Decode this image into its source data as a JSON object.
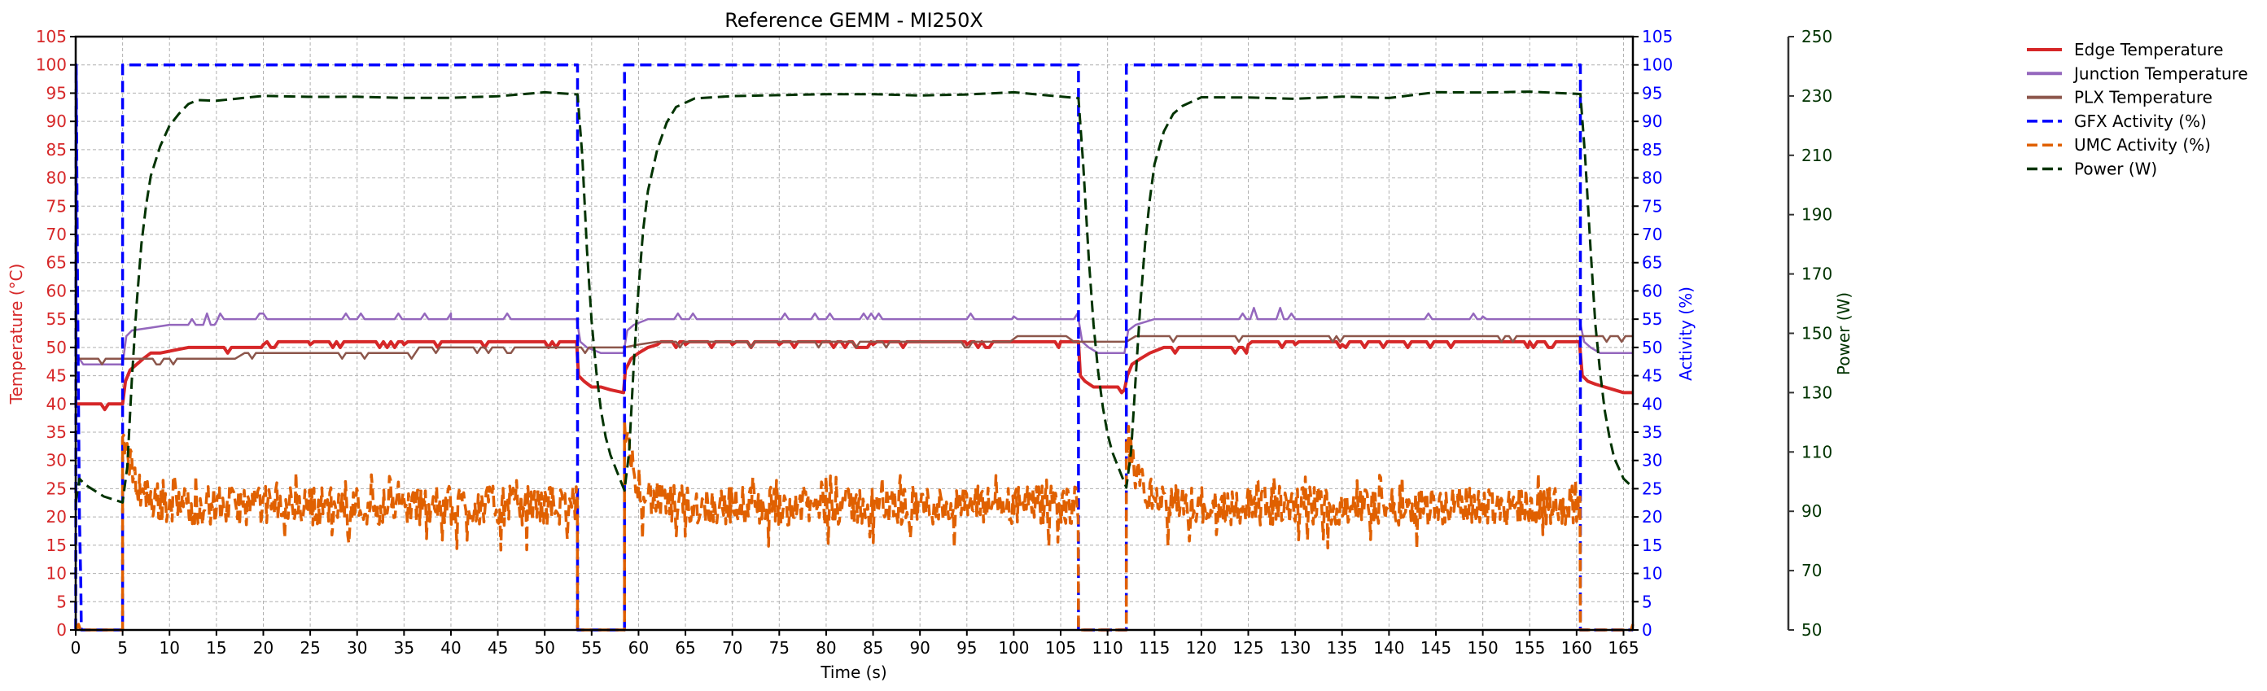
{
  "chart_data": {
    "type": "line",
    "title": "Reference GEMM - MI250X",
    "xlabel": "Time (s)",
    "ylabel_left": "Temperature (°C)",
    "ylabel_right": "Activity (%)",
    "ylabel_power": "Power (W)",
    "xlim": [
      0,
      166
    ],
    "ylim_left": [
      0,
      105
    ],
    "ylim_right": [
      0,
      105
    ],
    "ylim_power": [
      50,
      250
    ],
    "grid": true,
    "legend_position": "upper right (outside)",
    "x_ticks": [
      0,
      5,
      10,
      15,
      20,
      25,
      30,
      35,
      40,
      45,
      50,
      55,
      60,
      65,
      70,
      75,
      80,
      85,
      90,
      95,
      100,
      105,
      110,
      115,
      120,
      125,
      130,
      135,
      140,
      145,
      150,
      155,
      160,
      165
    ],
    "y_ticks_left": [
      0,
      5,
      10,
      15,
      20,
      25,
      30,
      35,
      40,
      45,
      50,
      55,
      60,
      65,
      70,
      75,
      80,
      85,
      90,
      95,
      100,
      105
    ],
    "y_ticks_right": [
      0,
      5,
      10,
      15,
      20,
      25,
      30,
      35,
      40,
      45,
      50,
      55,
      60,
      65,
      70,
      75,
      80,
      85,
      90,
      95,
      100,
      105
    ],
    "y_ticks_power": [
      50,
      70,
      90,
      110,
      130,
      150,
      170,
      190,
      210,
      230,
      250
    ],
    "colors": {
      "left_axis": "#d62728",
      "right_axis": "#0000ff",
      "power_axis": "#003300"
    },
    "legend": [
      {
        "label": "Edge Temperature",
        "color": "#d62728",
        "style": "solid"
      },
      {
        "label": "Junction Temperature",
        "color": "#9467bd",
        "style": "solid"
      },
      {
        "label": "PLX Temperature",
        "color": "#8c564b",
        "style": "solid"
      },
      {
        "label": "GFX Activity (%)",
        "color": "#0000ff",
        "style": "dashed"
      },
      {
        "label": "UMC Activity (%)",
        "color": "#e06000",
        "style": "dashed"
      },
      {
        "label": "Power (W)",
        "color": "#003300",
        "style": "dashed"
      }
    ],
    "series": [
      {
        "name": "Edge Temperature",
        "axis": "left",
        "color": "#d62728",
        "style": "solid",
        "width": 4,
        "x": [
          0,
          0.3,
          5.0,
          5.3,
          5.8,
          6.5,
          7.2,
          8.0,
          9.0,
          10.5,
          12,
          15,
          20,
          25,
          30,
          35,
          40,
          45,
          50,
          53.4,
          53.6,
          54.2,
          55,
          56,
          57,
          58.4,
          58.6,
          59.2,
          60,
          61,
          62,
          65,
          70,
          75,
          80,
          85,
          90,
          95,
          100,
          105,
          106.9,
          107.1,
          107.6,
          108.5,
          109.5,
          111.8,
          112.1,
          112.6,
          113.5,
          114.5,
          116,
          120,
          125,
          130,
          135,
          140,
          145,
          150,
          155,
          160.3,
          160.6,
          161.2,
          162,
          163,
          164,
          165,
          166
        ],
        "y": [
          40,
          40,
          40,
          44,
          46,
          47,
          48,
          49,
          49,
          49.5,
          50,
          50,
          50.5,
          50.5,
          51,
          50.5,
          51,
          51,
          51,
          51,
          45,
          44,
          43,
          43,
          42.5,
          42,
          46,
          48,
          49,
          50,
          50.5,
          50.5,
          50.5,
          50.5,
          51,
          50.5,
          51,
          50.5,
          51,
          51,
          51,
          45,
          44,
          43,
          43,
          42.5,
          45,
          47,
          48,
          49,
          50,
          50,
          50.5,
          50.5,
          50.5,
          51,
          51,
          51,
          51,
          51,
          45,
          44,
          43.5,
          43,
          42.5,
          42,
          42
        ]
      },
      {
        "name": "Junction Temperature",
        "axis": "left",
        "color": "#9467bd",
        "style": "solid",
        "width": 2.5,
        "x": [
          0,
          0.4,
          0.8,
          5.0,
          5.4,
          6,
          8,
          10,
          12,
          15,
          18,
          22,
          30,
          40,
          53.4,
          53.8,
          54.5,
          56,
          58.4,
          58.8,
          59.5,
          61,
          70,
          80,
          95,
          100,
          106.9,
          107.3,
          108,
          109,
          111.8,
          112.2,
          113,
          115,
          120,
          135,
          150,
          160.3,
          160.8,
          161.5,
          162.5,
          166
        ],
        "y": [
          49,
          48,
          47,
          47,
          52,
          53,
          53.5,
          54,
          54,
          54.5,
          55,
          55,
          55,
          55,
          55,
          51,
          50,
          49,
          49,
          53,
          54,
          55,
          55,
          55,
          55,
          55.5,
          55,
          51,
          50,
          49,
          49,
          53,
          54,
          55,
          55,
          55,
          55.5,
          55,
          51,
          50,
          49,
          49
        ]
      },
      {
        "name": "PLX Temperature",
        "axis": "left",
        "color": "#8c564b",
        "style": "solid",
        "width": 2.5,
        "x": [
          0,
          5,
          10,
          15,
          17,
          18,
          35,
          38,
          50,
          53.5,
          58.5,
          60,
          62,
          70,
          80,
          90,
          100,
          106,
          110,
          112,
          113,
          115,
          120,
          160,
          166
        ],
        "y": [
          48,
          48,
          48,
          48,
          48,
          49,
          49,
          50,
          50,
          50,
          50,
          50.5,
          51,
          51,
          51,
          51,
          51.5,
          51.5,
          51,
          51,
          52,
          52,
          52,
          52,
          52
        ]
      },
      {
        "name": "GFX Activity (%)",
        "axis": "right",
        "color": "#0000ff",
        "style": "dashed",
        "width": 3.5,
        "x": [
          0,
          0.05,
          0.2,
          0.4,
          0.55,
          0.6,
          5.0,
          5.0,
          53.5,
          53.5,
          58.5,
          58.5,
          106.9,
          106.9,
          112.0,
          112.0,
          160.4,
          160.4,
          166
        ],
        "y": [
          0,
          100,
          60,
          20,
          8,
          0,
          0,
          100,
          100,
          0,
          0,
          100,
          100,
          0,
          0,
          100,
          100,
          0,
          0
        ]
      },
      {
        "name": "UMC Activity (%)",
        "axis": "right",
        "color": "#e06000",
        "style": "dashed",
        "width": 3.5,
        "umc_profile": {
          "baseline": 22,
          "noise_amplitude": 3.5,
          "dip_min": 14,
          "peak_after_load": 35,
          "load_segments": [
            [
              5.0,
              53.5
            ],
            [
              58.5,
              106.9
            ],
            [
              112.0,
              160.4
            ]
          ],
          "idle_value": 0
        },
        "x": [
          0,
          0.3,
          0.5,
          4.99,
          5.0,
          5.3,
          5.8,
          6.5,
          7.5,
          9,
          11,
          15,
          20,
          25,
          30,
          35,
          40,
          45,
          50,
          53.4,
          53.5,
          58.4,
          58.5,
          58.8,
          59.3,
          60,
          61,
          63,
          67,
          72,
          77,
          82,
          87,
          92,
          97,
          102,
          106.8,
          106.9,
          111.9,
          112.0,
          112.3,
          112.8,
          113.5,
          114.5,
          116,
          120,
          125,
          130,
          135,
          140,
          145,
          150,
          155,
          160.3,
          160.4,
          165.8,
          166
        ],
        "y": [
          0,
          1,
          0,
          0,
          22,
          35,
          30,
          27,
          25,
          23,
          22,
          22,
          21.5,
          22,
          22,
          22.5,
          22,
          22,
          22,
          23,
          0,
          0,
          22,
          35,
          30,
          26,
          24,
          22.5,
          22,
          21.5,
          22,
          21.5,
          22,
          22,
          21.5,
          22,
          22.5,
          0,
          0,
          22,
          34,
          29,
          26,
          24,
          22.5,
          22,
          22,
          21.5,
          22,
          22,
          22.5,
          22,
          22.5,
          23,
          0,
          0,
          1
        ]
      },
      {
        "name": "Power (W)",
        "axis": "power",
        "color": "#003300",
        "style": "dashed",
        "width": 3,
        "x": [
          0,
          0.4,
          1,
          2,
          3,
          4,
          5.0,
          5.5,
          6,
          6.5,
          7,
          7.5,
          8,
          9,
          10,
          11,
          12,
          13,
          15,
          20,
          25,
          30,
          35,
          40,
          45,
          50,
          53.5,
          54,
          54.5,
          55,
          55.5,
          56,
          56.5,
          57,
          57.5,
          58.5,
          59,
          59.5,
          60,
          60.5,
          61,
          62,
          63,
          64,
          66,
          70,
          75,
          80,
          85,
          90,
          95,
          100,
          106.9,
          107.4,
          108,
          108.5,
          109,
          109.5,
          110,
          110.5,
          111,
          112,
          112.5,
          113,
          113.5,
          114,
          114.5,
          115,
          116,
          117,
          118,
          120,
          125,
          130,
          135,
          140,
          145,
          150,
          155,
          160.4,
          160.9,
          161.5,
          162,
          162.5,
          163,
          163.5,
          164,
          165,
          166
        ],
        "y": [
          93,
          101,
          99,
          97,
          95,
          94,
          93,
          105,
          135,
          160,
          180,
          193,
          203,
          213,
          220,
          224,
          227,
          228,
          229,
          229.5,
          230,
          230.5,
          229.5,
          230,
          230,
          230.5,
          230,
          210,
          178,
          154,
          137,
          124,
          115,
          109,
          105,
          97,
          110,
          140,
          165,
          185,
          198,
          212,
          221,
          226,
          229,
          230,
          229.5,
          230,
          230,
          230.5,
          230,
          230.5,
          230,
          207,
          175,
          153,
          137,
          125,
          116,
          110,
          106,
          98,
          110,
          135,
          160,
          180,
          195,
          207,
          218,
          224,
          227,
          229,
          230,
          229.5,
          230,
          230,
          230.5,
          231,
          231,
          231,
          210,
          178,
          153,
          137,
          124,
          115,
          108,
          101,
          98
        ]
      }
    ]
  }
}
